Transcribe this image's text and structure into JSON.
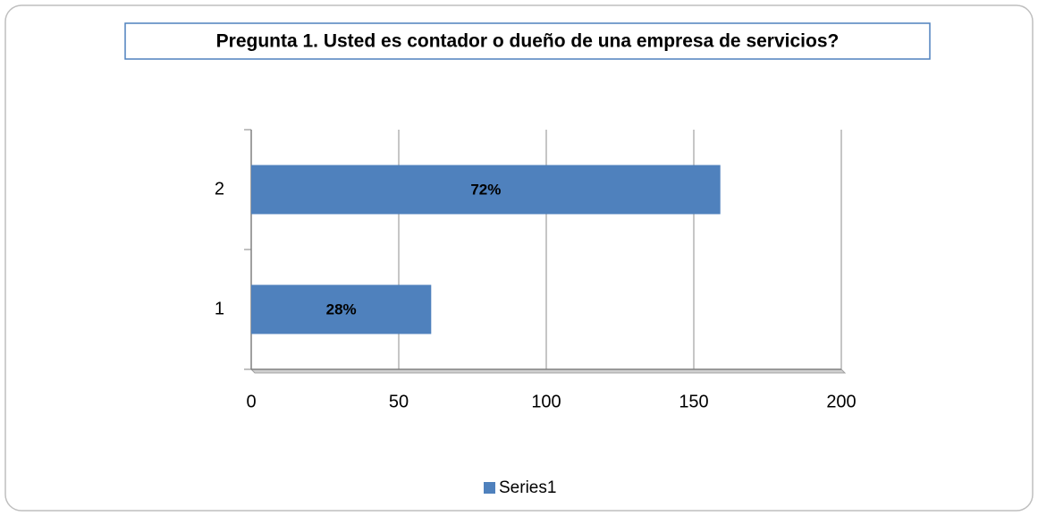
{
  "chart_data": {
    "type": "hbar",
    "title": "Pregunta 1. Usted es contador o dueño de una empresa de servicios?",
    "categories": [
      "1",
      "2"
    ],
    "series": [
      {
        "name": "Series1",
        "color": "#4f81bd",
        "values": [
          61,
          159
        ]
      }
    ],
    "data_labels": [
      "28%",
      "72%"
    ],
    "xlim": [
      0,
      200
    ],
    "xticks": [
      0,
      50,
      100,
      150,
      200
    ],
    "grid": true,
    "legend": "bottom"
  }
}
